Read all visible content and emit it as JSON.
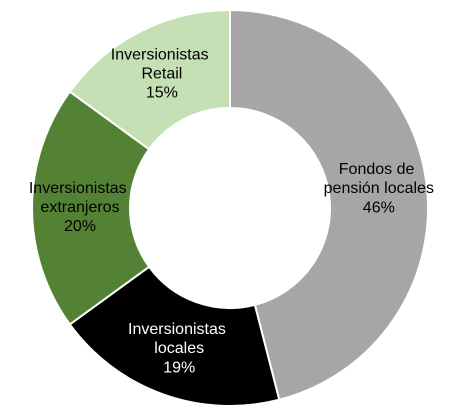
{
  "chart_data": {
    "type": "donut",
    "categories": [
      "Fondos de pensión locales",
      "Inversionistas locales",
      "Inversionistas extranjeros",
      "Inversionistas Retail"
    ],
    "values": [
      46,
      19,
      20,
      15
    ],
    "value_labels": [
      "46%",
      "19%",
      "20%",
      "15%"
    ],
    "colors": [
      "#a6a6a6",
      "#000000",
      "#548235",
      "#c5e0b4"
    ]
  }
}
